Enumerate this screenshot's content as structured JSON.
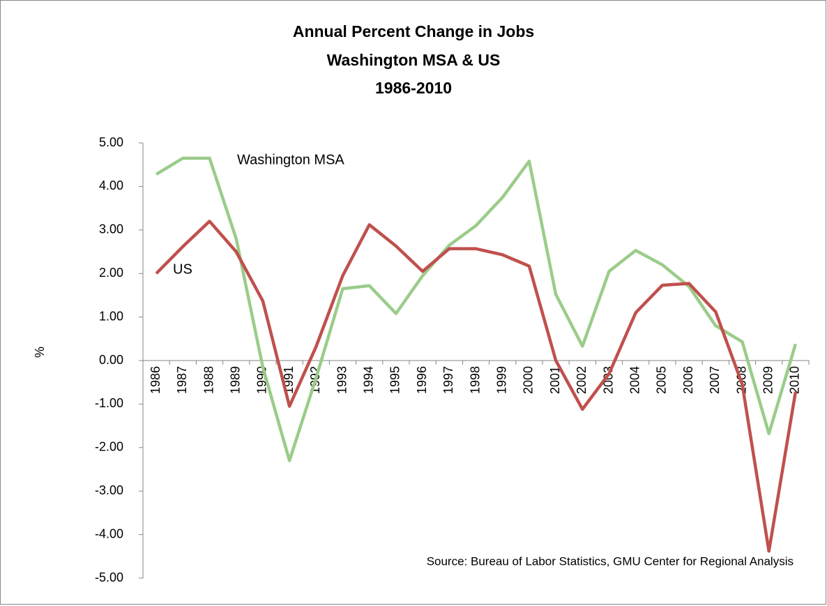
{
  "chart_data": {
    "type": "line",
    "title": "Annual Percent Change in Jobs",
    "subtitle": [
      "Washington MSA & US",
      "1986-2010"
    ],
    "ylabel": "%",
    "source": "Source: Bureau of Labor Statistics, GMU Center for Regional Analysis",
    "categories": [
      "1986",
      "1987",
      "1988",
      "1989",
      "1990",
      "1991",
      "1992",
      "1993",
      "1994",
      "1995",
      "1996",
      "1997",
      "1998",
      "1999",
      "2000",
      "2001",
      "2002",
      "2003",
      "2004",
      "2005",
      "2006",
      "2007",
      "2008",
      "2009",
      "2010"
    ],
    "series": [
      {
        "name": "Washington MSA",
        "color": "#9bcc8a",
        "values": [
          4.28,
          4.65,
          4.65,
          2.8,
          -0.15,
          -2.3,
          -0.4,
          1.65,
          1.72,
          1.08,
          1.95,
          2.65,
          3.1,
          3.75,
          4.58,
          1.52,
          0.33,
          2.05,
          2.53,
          2.2,
          1.7,
          0.8,
          0.43,
          -1.68,
          0.38
        ]
      },
      {
        "name": "US",
        "color": "#c0504d",
        "values": [
          2.0,
          2.62,
          3.2,
          2.5,
          1.37,
          -1.05,
          0.32,
          1.95,
          3.12,
          2.63,
          2.05,
          2.57,
          2.57,
          2.43,
          2.17,
          0.0,
          -1.12,
          -0.3,
          1.1,
          1.73,
          1.77,
          1.12,
          -0.55,
          -4.38,
          -0.72
        ]
      }
    ],
    "ylim": [
      -5,
      5
    ],
    "yticks": [
      {
        "value": 5,
        "label": "5.00"
      },
      {
        "value": 4,
        "label": "4.00"
      },
      {
        "value": 3,
        "label": "3.00"
      },
      {
        "value": 2,
        "label": "2.00"
      },
      {
        "value": 1,
        "label": "1.00"
      },
      {
        "value": 0,
        "label": "0.00"
      },
      {
        "value": -1,
        "label": "-1.00"
      },
      {
        "value": -2,
        "label": "-2.00"
      },
      {
        "value": -3,
        "label": "-3.00"
      },
      {
        "value": -4,
        "label": "-4.00"
      },
      {
        "value": -5,
        "label": "-5.00"
      }
    ],
    "grid": false
  }
}
